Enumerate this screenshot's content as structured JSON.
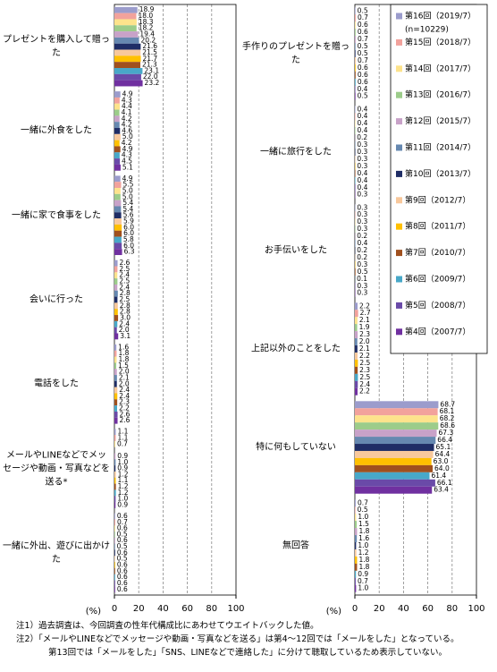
{
  "chart_data": [
    {
      "type": "bar",
      "orientation": "horizontal",
      "xlabel": "(%)",
      "xlim": [
        0,
        100
      ],
      "xticks": [
        0,
        20,
        40,
        60,
        80,
        100
      ],
      "grid": true,
      "categories": [
        "プレゼントを購入して贈った",
        "一緒に外食をした",
        "一緒に家で食事をした",
        "会いに行った",
        "電話をした",
        "メールやLINEなどでメッセージや動画・写真などを送る*",
        "一緒に外出、遊びに出かけた"
      ],
      "series": [
        {
          "values": [
            18.9,
            4.9,
            4.9,
            2.6,
            1.6,
            1.1,
            0.6
          ],
          "value_labels": [
            "18.9",
            "4.9",
            "4.9",
            "2.6",
            "1.6",
            "1.1",
            "0.6"
          ]
        },
        {
          "values": [
            18.0,
            4.3,
            5.5,
            2.5,
            1.8,
            1.1,
            0.7
          ],
          "value_labels": [
            "18.0",
            "4.3",
            "5.5",
            "2.5",
            "1.8",
            "1.1",
            "0.7"
          ]
        },
        {
          "values": [
            18.3,
            4.4,
            5.0,
            2.4,
            1.8,
            0.7,
            0.6
          ],
          "value_labels": [
            "18.3",
            "4.4",
            "5.0",
            "2.4",
            "1.8",
            "0.7",
            "0.6"
          ]
        },
        {
          "values": [
            18.2,
            4.1,
            5.0,
            2.5,
            1.5,
            null,
            0.5
          ],
          "value_labels": [
            "18.2",
            "4.1",
            "5.0",
            "2.5",
            "1.5",
            null,
            "0.5"
          ]
        },
        {
          "values": [
            19.4,
            4.2,
            5.4,
            2.4,
            2.0,
            0.9,
            0.6
          ],
          "value_labels": [
            "19.4",
            "4.2",
            "5.4",
            "2.4",
            "2.0",
            "0.9",
            "0.6"
          ]
        },
        {
          "values": [
            20.2,
            4.2,
            5.4,
            2.8,
            2.1,
            1.0,
            0.5
          ],
          "value_labels": [
            "20.2",
            "4.2",
            "5.4",
            "2.8",
            "2.1",
            "1.0",
            "0.5"
          ]
        },
        {
          "values": [
            21.6,
            4.6,
            5.6,
            2.5,
            2.0,
            0.9,
            0.6
          ],
          "value_labels": [
            "21.6",
            "4.6",
            "5.6",
            "2.5",
            "2.0",
            "0.9",
            "0.6"
          ]
        },
        {
          "values": [
            21.5,
            5.0,
            5.9,
            2.8,
            2.4,
            1.2,
            0.5
          ],
          "value_labels": [
            "21.5",
            "5.0",
            "5.9",
            "2.8",
            "2.4",
            "1.2",
            "0.5"
          ]
        },
        {
          "values": [
            21.7,
            4.2,
            6.0,
            2.8,
            2.4,
            1.1,
            0.6
          ],
          "value_labels": [
            "21.7",
            "4.2",
            "6.0",
            "2.8",
            "2.4",
            "1.1",
            "0.6"
          ]
        },
        {
          "values": [
            21.3,
            4.9,
            6.0,
            3.0,
            2.3,
            1.2,
            0.6
          ],
          "value_labels": [
            "21.3",
            "4.9",
            "6.0",
            "3.0",
            "2.3",
            "1.2",
            "0.6"
          ]
        },
        {
          "values": [
            23.1,
            4.3,
            5.8,
            2.4,
            2.2,
            1.2,
            0.6
          ],
          "value_labels": [
            "23.1",
            "4.3",
            "5.8",
            "2.4",
            "2.2",
            "1.2",
            "0.6"
          ]
        },
        {
          "values": [
            22.0,
            4.5,
            6.0,
            2.0,
            2.6,
            1.0,
            0.6
          ],
          "value_labels": [
            "22.0",
            "4.5",
            "6.0",
            "2.0",
            "2.6",
            "1.0",
            "0.6"
          ]
        },
        {
          "values": [
            23.2,
            5.1,
            6.3,
            3.1,
            2.6,
            0.9,
            0.6
          ],
          "value_labels": [
            "23.2",
            "5.1",
            "6.3",
            "3.1",
            "2.6",
            "0.9",
            "0.6"
          ]
        }
      ]
    },
    {
      "type": "bar",
      "orientation": "horizontal",
      "xlabel": "(%)",
      "xlim": [
        0,
        100
      ],
      "xticks": [
        0,
        20,
        40,
        60,
        80,
        100
      ],
      "grid": true,
      "legend_note": "(n=10229)",
      "categories": [
        "手作りのプレゼントを贈った",
        "一緒に旅行をした",
        "お手伝いをした",
        "上記以外のことをした",
        "特に何もしていない",
        "無回答"
      ],
      "series": [
        {
          "name": "第16回（2019/7）",
          "color": "#9b9ccc",
          "values": [
            0.5,
            0.4,
            0.3,
            2.2,
            68.7,
            0.7
          ],
          "value_labels": [
            "0.5",
            "0.4",
            "0.3",
            "2.2",
            "68.7",
            "0.7"
          ]
        },
        {
          "name": "第15回（2018/7）",
          "color": "#f2a29c",
          "values": [
            0.7,
            0.4,
            0.3,
            2.7,
            68.1,
            0.5
          ],
          "value_labels": [
            "0.7",
            "0.4",
            "0.3",
            "2.7",
            "68.1",
            "0.5"
          ]
        },
        {
          "name": "第14回（2017/7）",
          "color": "#fde38c",
          "values": [
            0.6,
            0.4,
            0.3,
            2.1,
            68.2,
            1.0
          ],
          "value_labels": [
            "0.6",
            "0.4",
            "0.3",
            "2.1",
            "68.2",
            "1.0"
          ]
        },
        {
          "name": "第13回（2016/7）",
          "color": "#9ccc8a",
          "values": [
            0.6,
            0.4,
            0.3,
            1.9,
            68.6,
            1.5
          ],
          "value_labels": [
            "0.6",
            "0.4",
            "0.3",
            "1.9",
            "68.6",
            "1.5"
          ]
        },
        {
          "name": "第12回（2015/7）",
          "color": "#c8a2c8",
          "values": [
            0.7,
            0.2,
            0.2,
            2.3,
            67.3,
            1.8
          ],
          "value_labels": [
            "0.7",
            "0.2",
            "0.2",
            "2.3",
            "67.3",
            "1.8"
          ]
        },
        {
          "name": "第11回（2014/7）",
          "color": "#6688b0",
          "values": [
            0.5,
            0.3,
            0.4,
            2.0,
            66.4,
            1.6
          ],
          "value_labels": [
            "0.5",
            "0.3",
            "0.4",
            "2.0",
            "66.4",
            "1.6"
          ]
        },
        {
          "name": "第10回（2013/7）",
          "color": "#1f2d66",
          "values": [
            0.5,
            0.3,
            0.2,
            2.1,
            65.1,
            1.0
          ],
          "value_labels": [
            "0.5",
            "0.3",
            "0.2",
            "2.1",
            "65.1",
            "1.0"
          ]
        },
        {
          "name": "第9回（2012/7）",
          "color": "#f8c89c",
          "values": [
            0.7,
            0.3,
            0.2,
            2.2,
            64.4,
            1.2
          ],
          "value_labels": [
            "0.7",
            "0.3",
            "0.2",
            "2.2",
            "64.4",
            "1.2"
          ]
        },
        {
          "name": "第8回（2011/7）",
          "color": "#ffc000",
          "values": [
            0.6,
            0.3,
            0.3,
            2.5,
            63.0,
            1.8
          ],
          "value_labels": [
            "0.6",
            "0.3",
            "0.3",
            "2.5",
            "63.0",
            "1.8"
          ]
        },
        {
          "name": "第7回（2010/7）",
          "color": "#a0501e",
          "values": [
            0.6,
            0.4,
            0.5,
            2.3,
            64.0,
            1.8
          ],
          "value_labels": [
            "0.6",
            "0.4",
            "0.5",
            "2.3",
            "64.0",
            "1.8"
          ]
        },
        {
          "name": "第6回（2009/7）",
          "color": "#48a8c8",
          "values": [
            0.6,
            0.4,
            0.1,
            2.5,
            61.4,
            0.9
          ],
          "value_labels": [
            "0.6",
            "0.4",
            "0.1",
            "2.5",
            "61.4",
            "0.9"
          ]
        },
        {
          "name": "第5回（2008/7）",
          "color": "#6a4aa8",
          "values": [
            0.4,
            0.4,
            0.3,
            2.4,
            66.1,
            0.7
          ],
          "value_labels": [
            "0.4",
            "0.4",
            "0.3",
            "2.4",
            "66.1",
            "0.7"
          ]
        },
        {
          "name": "第4回（2007/7）",
          "color": "#7030a0",
          "values": [
            0.5,
            0.3,
            0.3,
            2.2,
            63.4,
            1.0
          ],
          "value_labels": [
            "0.5",
            "0.3",
            "0.3",
            "2.2",
            "63.4",
            "1.0"
          ]
        }
      ]
    }
  ],
  "notes": [
    "注1）過去調査は、今回調査の性年代構成比にあわせてウエイトバックした値。",
    "注2）「メールやLINEなどでメッセージや動画・写真などを送る」は第4～12回では「メールをした」となっている。",
    "第13回では「メールをした」「SNS、LINEなどで連絡した」に分けて聴取しているため表示していない。"
  ]
}
